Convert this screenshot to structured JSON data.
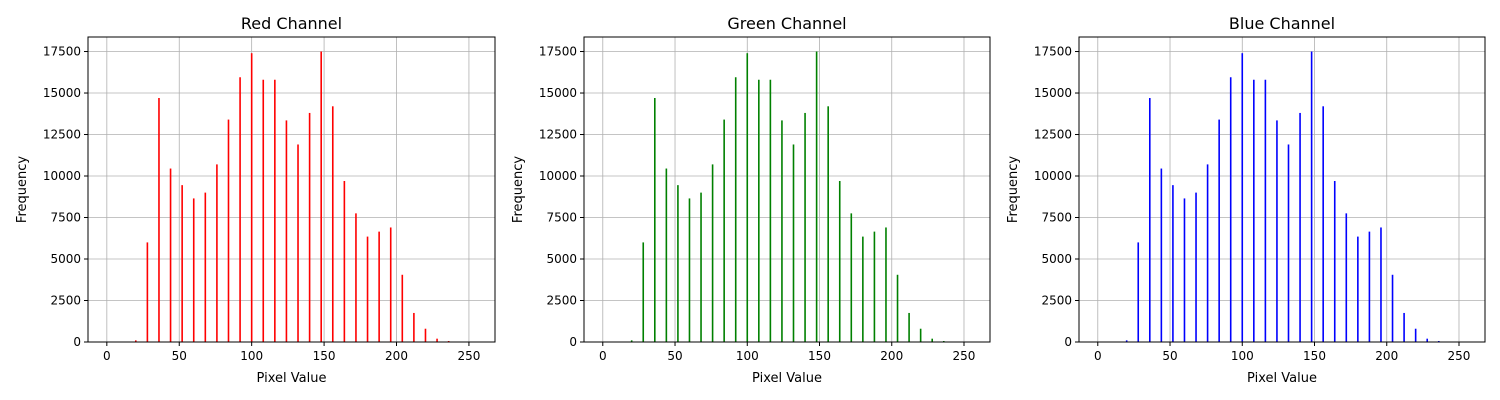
{
  "chart_data": [
    {
      "type": "bar",
      "title": "Red Channel",
      "xlabel": "Pixel Value",
      "ylabel": "Frequency",
      "color": "#ff0000",
      "xlim": [
        -13,
        268
      ],
      "ylim": [
        0,
        18375
      ],
      "xticks": [
        0,
        50,
        100,
        150,
        200,
        250
      ],
      "yticks": [
        0,
        2500,
        5000,
        7500,
        10000,
        12500,
        15000,
        17500
      ],
      "grid": true,
      "x": [
        20,
        28,
        36,
        44,
        52,
        60,
        68,
        76,
        84,
        92,
        100,
        108,
        116,
        124,
        132,
        140,
        148,
        156,
        164,
        172,
        180,
        188,
        196,
        204,
        212,
        220,
        228,
        236
      ],
      "values": [
        100,
        6000,
        14700,
        10450,
        9450,
        8650,
        9000,
        10700,
        13400,
        15950,
        17400,
        15800,
        15800,
        13350,
        11900,
        13800,
        17500,
        14200,
        9700,
        7750,
        6350,
        6650,
        6900,
        4050,
        1750,
        800,
        200,
        60
      ]
    },
    {
      "type": "bar",
      "title": "Green Channel",
      "xlabel": "Pixel Value",
      "ylabel": "Frequency",
      "color": "#008000",
      "xlim": [
        -13,
        268
      ],
      "ylim": [
        0,
        18375
      ],
      "xticks": [
        0,
        50,
        100,
        150,
        200,
        250
      ],
      "yticks": [
        0,
        2500,
        5000,
        7500,
        10000,
        12500,
        15000,
        17500
      ],
      "grid": true,
      "x": [
        20,
        28,
        36,
        44,
        52,
        60,
        68,
        76,
        84,
        92,
        100,
        108,
        116,
        124,
        132,
        140,
        148,
        156,
        164,
        172,
        180,
        188,
        196,
        204,
        212,
        220,
        228,
        236
      ],
      "values": [
        100,
        6000,
        14700,
        10450,
        9450,
        8650,
        9000,
        10700,
        13400,
        15950,
        17400,
        15800,
        15800,
        13350,
        11900,
        13800,
        17500,
        14200,
        9700,
        7750,
        6350,
        6650,
        6900,
        4050,
        1750,
        800,
        200,
        60
      ]
    },
    {
      "type": "bar",
      "title": "Blue Channel",
      "xlabel": "Pixel Value",
      "ylabel": "Frequency",
      "color": "#0000ff",
      "xlim": [
        -13,
        268
      ],
      "ylim": [
        0,
        18375
      ],
      "xticks": [
        0,
        50,
        100,
        150,
        200,
        250
      ],
      "yticks": [
        0,
        2500,
        5000,
        7500,
        10000,
        12500,
        15000,
        17500
      ],
      "grid": true,
      "x": [
        20,
        28,
        36,
        44,
        52,
        60,
        68,
        76,
        84,
        92,
        100,
        108,
        116,
        124,
        132,
        140,
        148,
        156,
        164,
        172,
        180,
        188,
        196,
        204,
        212,
        220,
        228,
        236
      ],
      "values": [
        100,
        6000,
        14700,
        10450,
        9450,
        8650,
        9000,
        10700,
        13400,
        15950,
        17400,
        15800,
        15800,
        13350,
        11900,
        13800,
        17500,
        14200,
        9700,
        7750,
        6350,
        6650,
        6900,
        4050,
        1750,
        800,
        200,
        60
      ]
    }
  ]
}
